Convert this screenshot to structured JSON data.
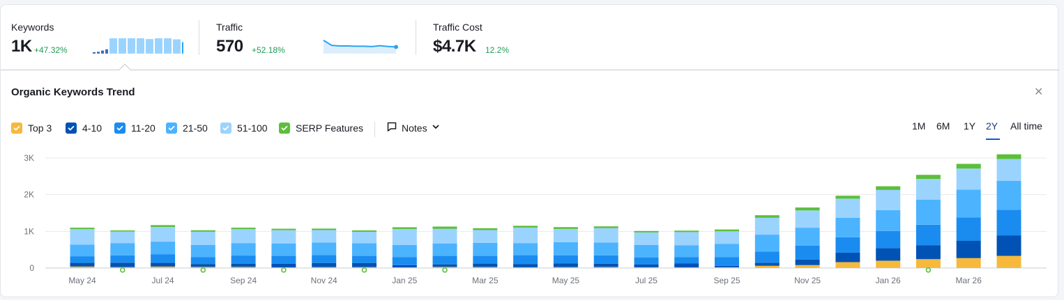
{
  "metrics": [
    {
      "label": "Keywords",
      "value": "1K",
      "delta": "+47.32%"
    },
    {
      "label": "Traffic",
      "value": "570",
      "delta": "+52.18%"
    },
    {
      "label": "Traffic Cost",
      "value": "$4.7K",
      "delta": "12.2%"
    }
  ],
  "sparklines": {
    "keywords": [
      0.08,
      0.12,
      0.2,
      0.28,
      1.0,
      1.0,
      1.0,
      1.0,
      0.95,
      1.0,
      1.0,
      0.93,
      0.75
    ],
    "traffic": [
      0.95,
      0.55,
      0.5,
      0.5,
      0.48,
      0.48,
      0.45,
      0.52,
      0.46,
      0.42
    ]
  },
  "panel": {
    "title": "Organic Keywords Trend",
    "close_icon": "close-icon"
  },
  "legend": [
    {
      "label": "Top 3",
      "color": "#f6b93b"
    },
    {
      "label": "4-10",
      "color": "#0052b4"
    },
    {
      "label": "11-20",
      "color": "#1a8cf0"
    },
    {
      "label": "21-50",
      "color": "#4cb3ff"
    },
    {
      "label": "51-100",
      "color": "#9bd3ff"
    },
    {
      "label": "SERP Features",
      "color": "#5cbf3a"
    }
  ],
  "notes": {
    "label": "Notes",
    "icon": "comment-icon",
    "dropdown_icon": "chevron-down-icon"
  },
  "ranges": [
    {
      "label": "1M",
      "active": false
    },
    {
      "label": "6M",
      "active": false
    },
    {
      "label": "1Y",
      "active": false
    },
    {
      "label": "2Y",
      "active": true
    },
    {
      "label": "All time",
      "active": false
    }
  ],
  "chart_data": {
    "type": "bar",
    "stacked": true,
    "ylim": [
      0,
      3000
    ],
    "y_ticks": [
      0,
      1000,
      2000,
      3000
    ],
    "y_tick_labels": [
      "0",
      "1K",
      "2K",
      "3K"
    ],
    "x_tick_labels": [
      "May 24",
      "Jul 24",
      "Sep 24",
      "Nov 24",
      "Jan 25",
      "Mar 25",
      "May 25",
      "Jul 25",
      "Sep 25",
      "Nov 25",
      "Jan 26",
      "Mar 26"
    ],
    "grid": true,
    "months": [
      "May 24",
      "Jun 24",
      "Jul 24",
      "Aug 24",
      "Sep 24",
      "Oct 24",
      "Nov 24",
      "Dec 24",
      "Jan 25",
      "Feb 25",
      "Mar 25",
      "Apr 25",
      "May 25",
      "Jun 25",
      "Jul 25",
      "Aug 25",
      "Sep 25",
      "Oct 25",
      "Nov 25",
      "Dec 25",
      "Jan 26",
      "Feb 26",
      "Mar 26",
      "Apr 26"
    ],
    "series": [
      {
        "name": "Top 3",
        "values": [
          40,
          25,
          40,
          30,
          30,
          20,
          25,
          25,
          20,
          30,
          25,
          20,
          25,
          25,
          20,
          20,
          20,
          60,
          80,
          160,
          200,
          240,
          270,
          330
        ]
      },
      {
        "name": "4-10",
        "values": [
          100,
          120,
          100,
          80,
          90,
          100,
          110,
          110,
          60,
          70,
          90,
          90,
          100,
          90,
          80,
          110,
          40,
          80,
          150,
          260,
          340,
          380,
          470,
          560
        ]
      },
      {
        "name": "11-20",
        "values": [
          180,
          200,
          230,
          190,
          220,
          210,
          220,
          200,
          220,
          230,
          220,
          240,
          220,
          230,
          190,
          170,
          240,
          310,
          380,
          420,
          470,
          560,
          640,
          700
        ]
      },
      {
        "name": "21-50",
        "values": [
          320,
          330,
          350,
          330,
          340,
          340,
          340,
          340,
          330,
          340,
          350,
          330,
          360,
          350,
          340,
          320,
          360,
          460,
          490,
          530,
          570,
          680,
          760,
          790
        ]
      },
      {
        "name": "51-100",
        "values": [
          420,
          320,
          400,
          360,
          380,
          360,
          340,
          310,
          430,
          400,
          350,
          420,
          360,
          390,
          340,
          360,
          340,
          460,
          470,
          520,
          550,
          570,
          570,
          590
        ]
      },
      {
        "name": "SERP Features",
        "values": [
          40,
          30,
          50,
          40,
          40,
          40,
          40,
          40,
          50,
          60,
          50,
          50,
          50,
          50,
          40,
          40,
          50,
          70,
          80,
          80,
          100,
          110,
          130,
          130
        ]
      }
    ]
  }
}
